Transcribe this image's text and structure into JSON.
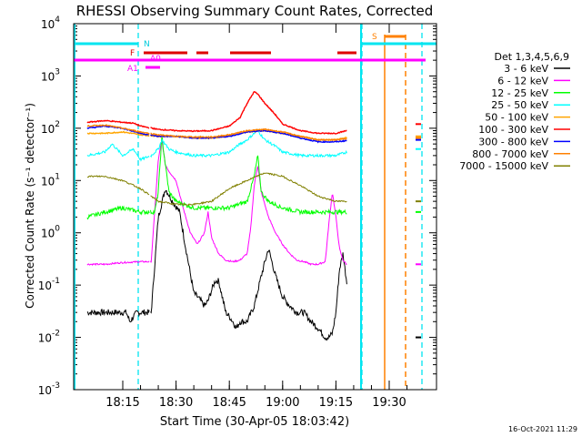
{
  "chart_data": {
    "type": "line",
    "title": "RHESSI Observing Summary Count Rates, Corrected",
    "xlabel": "Start Time (30-Apr-05 18:03:42)",
    "ylabel": "Corrected Count Rate (s⁻¹ detector⁻¹)",
    "yscale": "log",
    "ylim": [
      0.001,
      10000
    ],
    "y_tick_values": [
      0.001,
      0.01,
      0.1,
      1,
      10,
      100,
      1000,
      10000
    ],
    "y_tick_labels": [
      {
        "base": "10",
        "exp": "-3"
      },
      {
        "base": "10",
        "exp": "-2"
      },
      {
        "base": "10",
        "exp": "-1"
      },
      {
        "base": "10",
        "exp": "0"
      },
      {
        "base": "10",
        "exp": "1"
      },
      {
        "base": "10",
        "exp": "2"
      },
      {
        "base": "10",
        "exp": "3"
      },
      {
        "base": "10",
        "exp": "4"
      }
    ],
    "xlim_minutes": [
      5,
      41
    ],
    "x_ticks": [
      {
        "label": "18:15",
        "t": 15
      },
      {
        "label": "18:30",
        "t": 30
      },
      {
        "label": "18:45",
        "t": 45
      },
      {
        "label": "19:00",
        "t": 60
      },
      {
        "label": "19:15",
        "t": 75
      },
      {
        "label": "19:30",
        "t": 90
      }
    ],
    "x_minor_ticks": [
      15,
      20,
      25,
      30,
      35,
      40,
      45,
      50,
      55,
      60,
      65,
      70,
      75,
      80,
      85,
      90,
      95
    ],
    "legend_title": "Det 1,3,4,5,6,9",
    "legend_position": "right",
    "timestamp": "16-Oct-2021 11:29",
    "series": [
      {
        "name": "3 - 6 keV",
        "color": "#000000",
        "x": [
          5,
          12,
          13,
          14.5,
          16,
          17,
          18,
          19,
          21,
          23,
          25,
          27,
          29,
          31,
          33,
          35,
          36,
          37,
          38,
          39,
          40,
          41,
          42,
          43,
          44,
          45,
          46,
          47,
          48,
          49,
          50,
          52,
          54,
          56,
          58,
          60,
          62,
          64,
          66,
          68,
          70,
          72,
          73,
          74,
          75,
          76,
          77,
          78,
          79,
          80
        ],
        "y": [
          0.03,
          0.03,
          0.03,
          0.03,
          0.03,
          0.02,
          0.025,
          0.03,
          0.03,
          0.03,
          2,
          7,
          4,
          2.5,
          0.4,
          0.07,
          0.06,
          0.05,
          0.04,
          0.05,
          0.08,
          0.12,
          0.12,
          0.06,
          0.03,
          0.025,
          0.02,
          0.015,
          0.02,
          0.02,
          0.02,
          0.04,
          0.15,
          0.5,
          0.15,
          0.06,
          0.04,
          0.03,
          0.03,
          0.02,
          0.015,
          0.01,
          0.01,
          0.012,
          0.03,
          0.2,
          0.4,
          0.12,
          0.03,
          0.01
        ]
      },
      {
        "name": "6 - 12 keV",
        "color": "#ff00ff",
        "x": [
          5,
          10,
          15,
          20,
          23,
          25,
          26,
          27,
          28,
          30,
          32,
          34,
          36,
          38,
          39,
          40,
          42,
          44,
          46,
          48,
          50,
          51,
          52,
          53,
          54,
          56,
          58,
          60,
          62,
          64,
          66,
          68,
          70,
          72,
          73,
          74,
          75,
          76,
          77,
          78,
          80
        ],
        "y": [
          0.25,
          0.25,
          0.27,
          0.28,
          0.28,
          25,
          60,
          20,
          15,
          10,
          3,
          1,
          0.6,
          1,
          2.5,
          0.8,
          0.4,
          0.3,
          0.28,
          0.3,
          0.4,
          1.2,
          8,
          20,
          6,
          2,
          1,
          0.6,
          0.4,
          0.3,
          0.28,
          0.25,
          0.25,
          0.28,
          1.5,
          6,
          2,
          0.5,
          0.3,
          0.25,
          0.25
        ]
      },
      {
        "name": "12 - 25 keV",
        "color": "#00ff00",
        "x": [
          5,
          10,
          15,
          20,
          24,
          25,
          26,
          27,
          28,
          30,
          35,
          40,
          45,
          50,
          52,
          53,
          54,
          56,
          60,
          65,
          70,
          75,
          80
        ],
        "y": [
          2,
          2.5,
          3,
          2.5,
          2.5,
          6,
          70,
          20,
          6,
          4,
          3,
          3,
          3,
          4,
          12,
          30,
          6,
          4,
          3,
          2.5,
          2.5,
          2.5,
          2.5
        ]
      },
      {
        "name": "25 - 50 keV",
        "color": "#00ffff",
        "x": [
          5,
          10,
          12,
          15,
          18,
          20,
          23,
          25,
          26,
          28,
          30,
          35,
          40,
          45,
          48,
          50,
          52,
          53,
          55,
          58,
          60,
          65,
          70,
          75,
          78,
          80
        ],
        "y": [
          30,
          35,
          50,
          30,
          40,
          25,
          30,
          40,
          60,
          40,
          35,
          30,
          30,
          35,
          50,
          60,
          80,
          90,
          60,
          45,
          35,
          30,
          30,
          30,
          35,
          40
        ]
      },
      {
        "name": "50 - 100 keV",
        "color": "#ffa500",
        "x": [
          5,
          10,
          15,
          20,
          25,
          30,
          35,
          40,
          45,
          50,
          55,
          60,
          65,
          70,
          75,
          80
        ],
        "y": [
          80,
          80,
          85,
          75,
          70,
          70,
          65,
          65,
          70,
          85,
          90,
          80,
          70,
          60,
          60,
          70
        ]
      },
      {
        "name": "100 - 300 keV",
        "color": "#ff0000",
        "x": [
          5,
          10,
          15,
          18,
          20,
          25,
          30,
          35,
          40,
          45,
          48,
          50,
          52,
          53,
          55,
          58,
          60,
          65,
          70,
          75,
          78,
          80
        ],
        "y": [
          130,
          140,
          130,
          125,
          110,
          95,
          90,
          88,
          90,
          110,
          160,
          300,
          500,
          450,
          300,
          180,
          120,
          90,
          80,
          80,
          90,
          120
        ]
      },
      {
        "name": "300 - 800 keV",
        "color": "#0000ff",
        "x": [
          5,
          10,
          15,
          20,
          25,
          30,
          35,
          40,
          45,
          50,
          55,
          60,
          65,
          70,
          75,
          80
        ],
        "y": [
          100,
          110,
          100,
          80,
          70,
          70,
          65,
          65,
          70,
          85,
          90,
          80,
          65,
          55,
          55,
          60
        ]
      },
      {
        "name": "800 - 7000 keV",
        "color": "#ff8000",
        "x": [
          5,
          10,
          15,
          20,
          25,
          30,
          35,
          40,
          45,
          50,
          55,
          60,
          65,
          70,
          75,
          80
        ],
        "y": [
          110,
          115,
          100,
          85,
          75,
          70,
          68,
          68,
          75,
          90,
          95,
          85,
          70,
          60,
          60,
          65
        ]
      },
      {
        "name": "7000 - 15000 keV",
        "color": "#808000",
        "x": [
          5,
          10,
          15,
          20,
          25,
          30,
          35,
          40,
          45,
          50,
          55,
          60,
          65,
          70,
          75,
          80
        ],
        "y": [
          12,
          12,
          10,
          7,
          4,
          3.5,
          3.5,
          4,
          7,
          10,
          14,
          12,
          8,
          5,
          4,
          4
        ]
      }
    ],
    "annotations": [
      {
        "label": "N",
        "color": "#00ccdd"
      },
      {
        "label": "F",
        "color": "#dd0000"
      },
      {
        "label": "A1",
        "color": "#ff00ff"
      },
      {
        "label": "A0",
        "color": "#ff00ff"
      },
      {
        "label": "S",
        "color": "#ff8000"
      }
    ]
  }
}
